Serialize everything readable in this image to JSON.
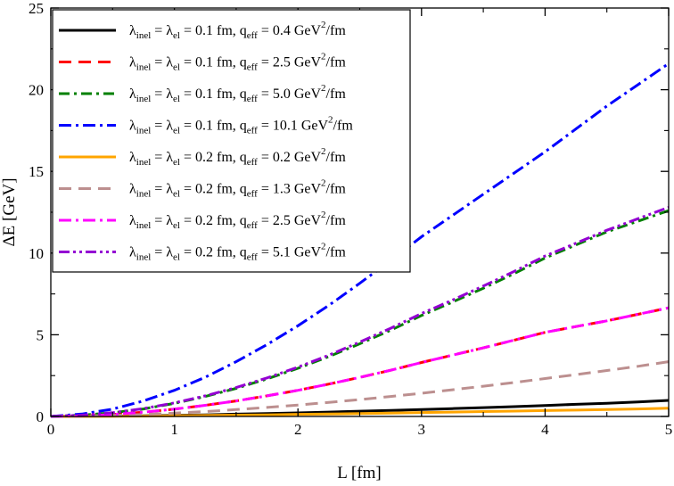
{
  "chart_data": {
    "type": "line",
    "xlabel": "L [fm]",
    "ylabel": "ΔE [GeV]",
    "xlim": [
      0,
      5
    ],
    "ylim": [
      0,
      25
    ],
    "xticks": [
      0,
      1,
      2,
      3,
      4,
      5
    ],
    "yticks": [
      0,
      5,
      10,
      15,
      20,
      25
    ],
    "grid": false,
    "legend_position": "top-left",
    "legend_text": {
      "lambda": "λ",
      "inel": "inel",
      "el": "el",
      "q": "q",
      "eff": "eff",
      "equals": " = ",
      "fm": " fm, ",
      "gev": " GeV",
      "sq": "2",
      "perfm": "/fm"
    },
    "x": [
      0,
      0.25,
      0.5,
      0.75,
      1.0,
      1.25,
      1.5,
      1.75,
      2.0,
      2.25,
      2.5,
      2.75,
      3.0,
      3.25,
      3.5,
      3.75,
      4.0,
      4.25,
      4.5,
      4.75,
      5.0
    ],
    "series": [
      {
        "lambda": "0.1",
        "qeff": "0.4",
        "color": "#000000",
        "dash": "",
        "values": [
          0,
          0.01,
          0.02,
          0.04,
          0.07,
          0.1,
          0.14,
          0.18,
          0.22,
          0.27,
          0.32,
          0.37,
          0.42,
          0.48,
          0.54,
          0.6,
          0.67,
          0.74,
          0.81,
          0.89,
          0.98
        ]
      },
      {
        "lambda": "0.1",
        "qeff": "2.5",
        "color": "#ff0000",
        "dash": "14,8",
        "values": [
          0,
          0.04,
          0.12,
          0.26,
          0.45,
          0.68,
          0.95,
          1.26,
          1.6,
          1.98,
          2.39,
          2.83,
          3.3,
          3.75,
          4.2,
          4.67,
          5.15,
          5.5,
          5.85,
          6.25,
          6.65
        ]
      },
      {
        "lambda": "0.1",
        "qeff": "5.0",
        "color": "#008000",
        "dash": "12,5,3,5",
        "values": [
          0,
          0.08,
          0.22,
          0.46,
          0.8,
          1.22,
          1.72,
          2.3,
          2.95,
          3.67,
          4.45,
          5.28,
          6.18,
          7.0,
          7.85,
          8.75,
          9.7,
          10.5,
          11.3,
          11.95,
          12.6
        ]
      },
      {
        "lambda": "0.1",
        "qeff": "10.1",
        "color": "#0000ff",
        "dash": "14,5,3,5",
        "values": [
          0,
          0.15,
          0.45,
          0.95,
          1.6,
          2.4,
          3.35,
          4.4,
          5.55,
          6.8,
          8.15,
          9.55,
          11.0,
          12.3,
          13.6,
          14.9,
          16.2,
          17.6,
          19.0,
          20.3,
          21.6
        ]
      },
      {
        "lambda": "0.2",
        "qeff": "0.2",
        "color": "#ffa500",
        "dash": "",
        "values": [
          0,
          0.005,
          0.01,
          0.02,
          0.04,
          0.06,
          0.08,
          0.1,
          0.13,
          0.15,
          0.18,
          0.21,
          0.24,
          0.27,
          0.3,
          0.33,
          0.36,
          0.39,
          0.42,
          0.46,
          0.5
        ]
      },
      {
        "lambda": "0.2",
        "qeff": "1.3",
        "color": "#bc8f8f",
        "dash": "14,8",
        "values": [
          0,
          0.02,
          0.06,
          0.12,
          0.2,
          0.3,
          0.42,
          0.55,
          0.7,
          0.86,
          1.03,
          1.22,
          1.42,
          1.63,
          1.85,
          2.08,
          2.32,
          2.56,
          2.81,
          3.07,
          3.35
        ]
      },
      {
        "lambda": "0.2",
        "qeff": "2.5",
        "color": "#ff00ff",
        "dash": "14,5,3,5",
        "values": [
          0,
          0.04,
          0.12,
          0.26,
          0.45,
          0.68,
          0.95,
          1.26,
          1.6,
          1.98,
          2.39,
          2.83,
          3.3,
          3.75,
          4.2,
          4.67,
          5.15,
          5.5,
          5.85,
          6.25,
          6.65
        ]
      },
      {
        "lambda": "0.2",
        "qeff": "5.1",
        "color": "#9400d3",
        "dash": "12,4,3,4,3,4",
        "values": [
          0,
          0.08,
          0.23,
          0.48,
          0.83,
          1.26,
          1.77,
          2.36,
          3.02,
          3.75,
          4.55,
          5.4,
          6.3,
          7.12,
          7.98,
          8.88,
          9.82,
          10.6,
          11.4,
          12.1,
          12.8
        ]
      }
    ]
  }
}
